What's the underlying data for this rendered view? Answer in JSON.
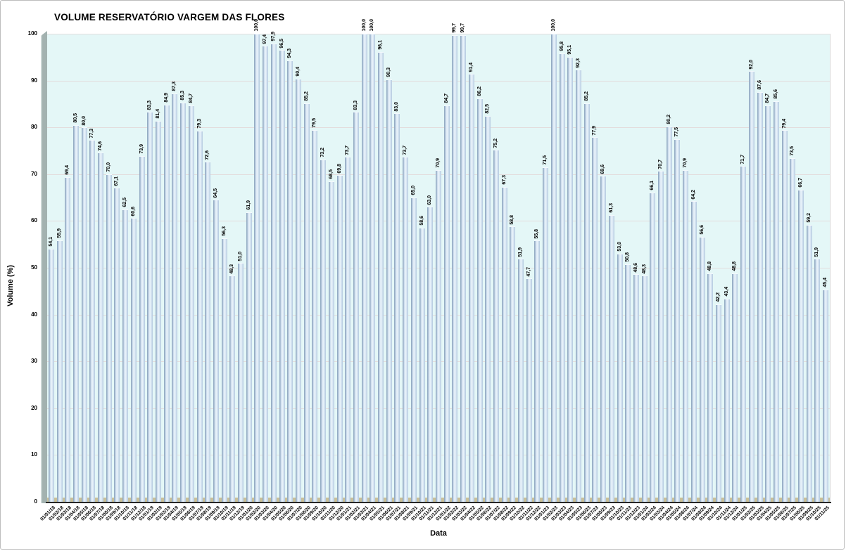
{
  "page": {
    "background": "#ffffff",
    "border_color": "#bdbdbd"
  },
  "chart_data": {
    "type": "bar",
    "title": "VOLUME RESERVATÓRIO VARGEM DAS FLORES",
    "xlabel": "Data",
    "ylabel": "Volume (%)",
    "ylim": [
      0,
      100
    ],
    "y_ticks": [
      0,
      10,
      20,
      30,
      40,
      50,
      60,
      70,
      80,
      90,
      100
    ],
    "grid": true,
    "legend": false,
    "value_label_decimal_separator": ",",
    "value_labels_rotated": true,
    "categories": [
      "01/01/18",
      "01/02/18",
      "01/03/18",
      "01/04/18",
      "01/05/18",
      "01/06/18",
      "01/07/18",
      "01/08/18",
      "01/09/18",
      "01/10/18",
      "01/11/18",
      "01/12/18",
      "01/01/19",
      "01/02/19",
      "01/03/19",
      "01/04/19",
      "01/05/19",
      "01/06/19",
      "01/07/19",
      "01/08/19",
      "01/09/19",
      "01/10/19",
      "01/11/19",
      "01/12/19",
      "01/01/20",
      "01/02/20",
      "01/03/20",
      "01/04/20",
      "01/05/20",
      "01/06/20",
      "01/07/20",
      "01/08/20",
      "01/09/20",
      "01/10/20",
      "01/11/20",
      "01/12/20",
      "01/01/21",
      "01/02/21",
      "01/03/21",
      "01/04/21",
      "01/05/21",
      "01/06/21",
      "01/07/21",
      "01/08/21",
      "01/09/21",
      "01/10/21",
      "01/11/21",
      "01/12/21",
      "01/01/22",
      "01/02/22",
      "01/03/22",
      "01/04/22",
      "01/05/22",
      "01/06/22",
      "01/07/22",
      "01/08/22",
      "01/09/22",
      "01/10/22",
      "01/11/22",
      "01/12/22",
      "01/01/23",
      "01/02/23",
      "01/03/23",
      "01/04/23",
      "01/05/23",
      "01/06/23",
      "01/07/23",
      "01/08/23",
      "01/09/23",
      "01/10/23",
      "01/11/23",
      "01/12/23",
      "01/01/24",
      "01/02/24",
      "01/03/24",
      "01/04/24",
      "01/05/24",
      "01/06/24",
      "01/07/24",
      "01/08/24",
      "01/09/24",
      "01/10/24",
      "01/11/24",
      "01/12/24",
      "01/01/25",
      "01/02/25",
      "01/03/25",
      "01/04/25",
      "01/05/25",
      "01/06/25",
      "01/07/25",
      "01/08/25",
      "01/09/25",
      "01/10/25",
      "01/11/25"
    ],
    "values": [
      54.1,
      55.9,
      69.4,
      80.5,
      80.0,
      77.3,
      74.6,
      70.0,
      67.1,
      62.5,
      60.6,
      73.9,
      83.3,
      81.4,
      84.9,
      87.3,
      85.3,
      84.7,
      79.3,
      72.6,
      64.5,
      56.3,
      48.3,
      51.0,
      61.9,
      100.0,
      97.4,
      97.9,
      96.5,
      94.3,
      90.4,
      85.2,
      79.5,
      73.2,
      68.5,
      69.8,
      73.7,
      83.3,
      100.0,
      100.0,
      96.1,
      90.3,
      83.0,
      73.7,
      65.0,
      58.6,
      63.0,
      70.9,
      84.7,
      99.7,
      99.7,
      91.4,
      86.2,
      82.5,
      75.2,
      67.3,
      58.8,
      51.9,
      47.7,
      55.8,
      71.5,
      100.0,
      95.8,
      95.1,
      92.3,
      85.2,
      77.9,
      69.6,
      61.3,
      53.0,
      50.8,
      48.6,
      48.3,
      66.1,
      70.7,
      80.2,
      77.5,
      70.9,
      64.2,
      56.6,
      48.8,
      42.2,
      43.4,
      48.8,
      71.7,
      92.0,
      87.6,
      84.7,
      85.6,
      79.4,
      73.5,
      66.7,
      59.2,
      51.9,
      45.4
    ],
    "colors": {
      "plot_background": "#e4f7f7",
      "bar_edge_dark": "#8ea6bf",
      "bar_body": "#d6e5f3",
      "bar_highlight": "#ecf4fb",
      "wall": "#a3b2b0",
      "floor": "#c9c099",
      "gridline": "#e3dddd",
      "axis_line": "#262626",
      "text": "#000000"
    }
  }
}
